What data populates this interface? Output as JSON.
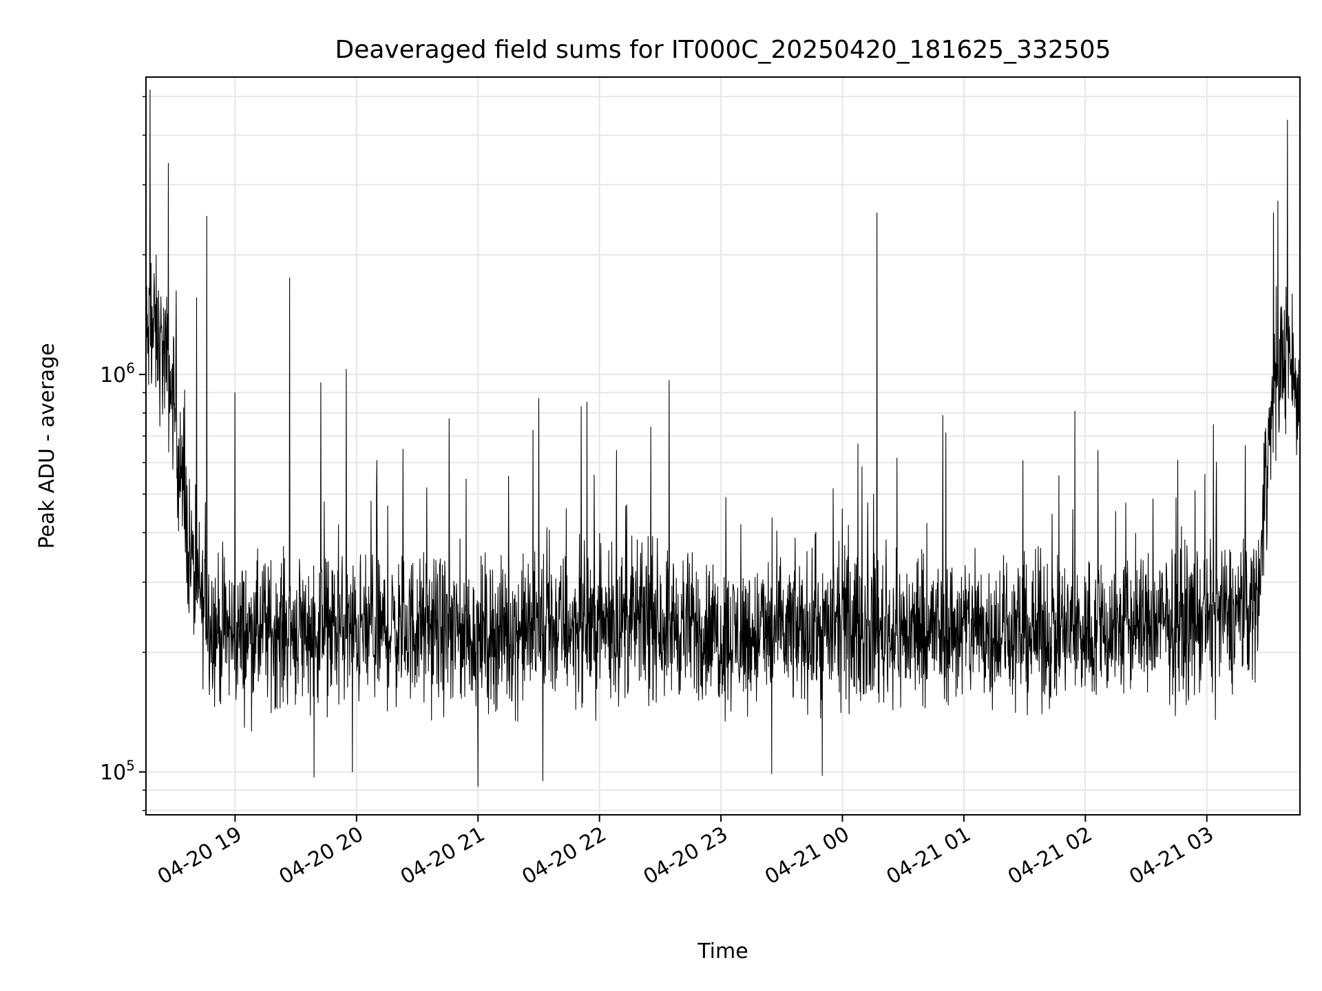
{
  "chart_data": {
    "type": "line",
    "title": "Deaveraged field sums for IT000C_20250420_181625_332505",
    "xlabel": "Time",
    "ylabel": "Peak ADU - average",
    "yscale": "log",
    "ylim": [
      78000,
      5600000
    ],
    "xlim": [
      "2025-04-20 18:16",
      "2025-04-21 03:46"
    ],
    "x_ticks": [
      "04-20 19",
      "04-20 20",
      "04-20 21",
      "04-20 22",
      "04-20 23",
      "04-21 00",
      "04-21 01",
      "04-21 02",
      "04-21 03"
    ],
    "y_ticks": [
      {
        "base": "10",
        "exp": "5"
      },
      {
        "base": "10",
        "exp": "6"
      }
    ],
    "grid": "on",
    "line_color": "#000000",
    "series": [
      {
        "x": [
          "2025-04-20 18:16",
          "2025-04-20 18:20",
          "2025-04-20 18:25",
          "2025-04-20 18:30",
          "2025-04-20 18:35",
          "2025-04-20 18:40",
          "2025-04-20 18:45",
          "2025-04-20 18:50",
          "2025-04-20 19:00",
          "2025-04-20 19:15",
          "2025-04-20 19:30",
          "2025-04-20 20:00",
          "2025-04-20 20:30",
          "2025-04-20 21:00",
          "2025-04-20 21:30",
          "2025-04-20 22:00",
          "2025-04-20 22:30",
          "2025-04-20 23:00",
          "2025-04-20 23:30",
          "2025-04-21 00:00",
          "2025-04-21 00:30",
          "2025-04-21 01:00",
          "2025-04-21 01:30",
          "2025-04-21 02:00",
          "2025-04-21 02:30",
          "2025-04-21 03:00",
          "2025-04-21 03:15",
          "2025-04-21 03:25",
          "2025-04-21 03:30",
          "2025-04-21 03:35",
          "2025-04-21 03:40",
          "2025-04-21 03:46"
        ],
        "values": [
          1200000,
          1300000,
          1100000,
          850000,
          450000,
          300000,
          260000,
          230000,
          220000,
          225000,
          230000,
          225000,
          230000,
          220000,
          230000,
          235000,
          240000,
          220000,
          225000,
          230000,
          225000,
          230000,
          225000,
          225000,
          235000,
          240000,
          250000,
          270000,
          650000,
          1000000,
          1200000,
          800000
        ]
      }
    ],
    "spikes": [
      {
        "x": "2025-04-20 18:18",
        "value": 5200000
      },
      {
        "x": "2025-04-20 18:27",
        "value": 3400000
      },
      {
        "x": "2025-04-20 18:46",
        "value": 2500000
      },
      {
        "x": "2025-04-20 19:00",
        "value": 900000
      },
      {
        "x": "2025-04-20 19:27",
        "value": 1750000
      },
      {
        "x": "2025-04-20 19:39",
        "value": 97000
      },
      {
        "x": "2025-04-20 19:55",
        "value": 1030000
      },
      {
        "x": "2025-04-20 19:58",
        "value": 100000
      },
      {
        "x": "2025-04-20 21:00",
        "value": 92000
      },
      {
        "x": "2025-04-20 21:30",
        "value": 870000
      },
      {
        "x": "2025-04-20 21:32",
        "value": 95000
      },
      {
        "x": "2025-04-20 21:51",
        "value": 830000
      },
      {
        "x": "2025-04-20 23:25",
        "value": 99000
      },
      {
        "x": "2025-04-20 23:50",
        "value": 98000
      },
      {
        "x": "2025-04-21 00:17",
        "value": 2550000
      },
      {
        "x": "2025-04-21 03:33",
        "value": 2550000
      }
    ]
  }
}
